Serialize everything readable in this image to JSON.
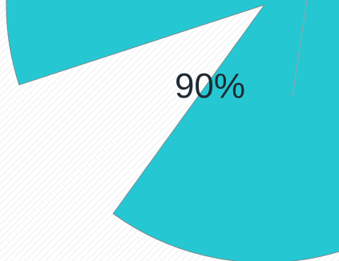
{
  "chart_data": {
    "type": "pie",
    "slices": [
      {
        "label": "",
        "value": 90,
        "color": "#25c8d2"
      },
      {
        "label": "",
        "value": 10,
        "color": "#ffffff"
      }
    ],
    "data_labels": [
      "90%"
    ],
    "legend": "none",
    "background_pattern": "diagonal-hatch"
  },
  "colors": {
    "slice_fill": "#25c8d2",
    "slice_stroke": "#7a8a90",
    "leader_line": "#9aa3a8",
    "background": "#ffffff",
    "hatch": "#e9ecef"
  }
}
